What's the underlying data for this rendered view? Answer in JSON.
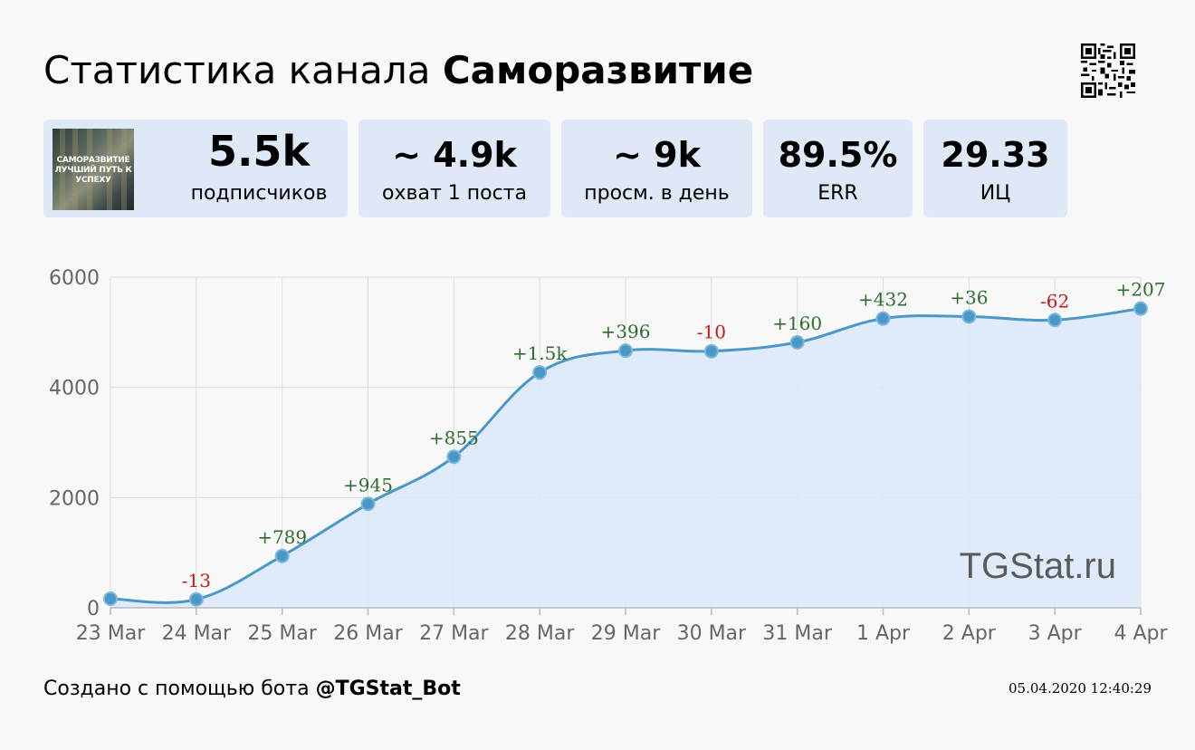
{
  "header": {
    "title_prefix": "Статистика канала",
    "channel_name": "Саморазвитие"
  },
  "thumbnail": {
    "text": "САМОРАЗВИТИЕ ЛУЧШИЙ ПУТЬ К УСПЕХУ"
  },
  "cards": [
    {
      "value": "5.5k",
      "label": "подписчиков"
    },
    {
      "value": "~ 4.9k",
      "label": "охват 1 поста"
    },
    {
      "value": "~ 9k",
      "label": "просм. в день"
    },
    {
      "value": "89.5%",
      "label": "ERR"
    },
    {
      "value": "29.33",
      "label": "ИЦ"
    }
  ],
  "watermark": "TGStat.ru",
  "footer": {
    "created_text": "Создано с помощью бота",
    "bot_name": "@TGStat_Bot",
    "timestamp": "05.04.2020 12:40:29"
  },
  "colors": {
    "line": "#4a98c8",
    "area": "#dce9fa",
    "positive_label": "#2f6b2f",
    "negative_label": "#c8161d",
    "card_bg": "#dee8f7"
  },
  "chart_data": {
    "type": "area",
    "categories": [
      "23 Mar",
      "24 Mar",
      "25 Mar",
      "26 Mar",
      "27 Mar",
      "28 Mar",
      "29 Mar",
      "30 Mar",
      "31 Mar",
      "1 Apr",
      "2 Apr",
      "3 Apr",
      "4 Apr"
    ],
    "series": [
      {
        "values": [
          165,
          152,
          941,
          1886,
          2741,
          4271,
          4667,
          4657,
          4817,
          5249,
          5285,
          5223,
          5430
        ],
        "labels": [
          "",
          "-13",
          "+789",
          "+945",
          "+855",
          "+1.5k",
          "+396",
          "-10",
          "+160",
          "+432",
          "+36",
          "-62",
          "+207"
        ]
      }
    ],
    "y_ticks": [
      "0",
      "2000",
      "4000",
      "6000"
    ],
    "ylim": [
      0,
      6000
    ],
    "grid": true
  }
}
